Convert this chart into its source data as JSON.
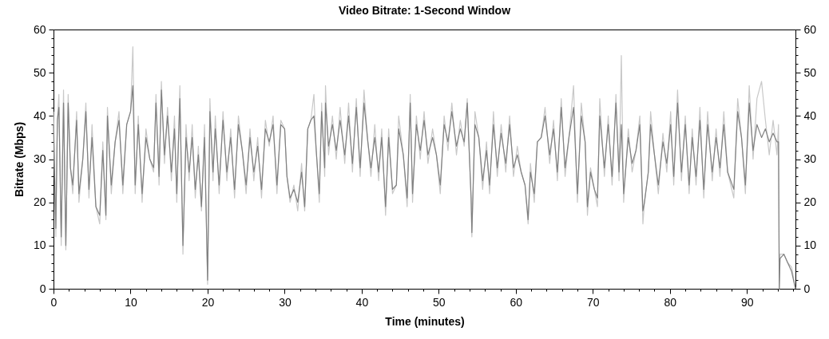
{
  "chart_data": {
    "type": "line",
    "title": "Video Bitrate: 1-Second Window",
    "xlabel": "Time (minutes)",
    "ylabel": "Bitrate (Mbps)",
    "xlim": [
      0,
      96.3
    ],
    "ylim": [
      0,
      60
    ],
    "y2lim": [
      0,
      60
    ],
    "xticks": [
      0,
      {
        "value": 2,
        "label": null
      },
      {
        "value": 4,
        "label": null
      },
      {
        "value": 6,
        "label": null
      },
      {
        "value": 8,
        "label": null
      },
      10,
      {
        "value": 12,
        "label": null
      },
      {
        "value": 14,
        "label": null
      },
      {
        "value": 16,
        "label": null
      },
      {
        "value": 18,
        "label": null
      },
      20,
      {
        "value": 22,
        "label": null
      },
      {
        "value": 24,
        "label": null
      },
      {
        "value": 26,
        "label": null
      },
      {
        "value": 28,
        "label": null
      },
      30,
      {
        "value": 32,
        "label": null
      },
      {
        "value": 34,
        "label": null
      },
      {
        "value": 36,
        "label": null
      },
      {
        "value": 38,
        "label": null
      },
      40,
      {
        "value": 42,
        "label": null
      },
      {
        "value": 44,
        "label": null
      },
      {
        "value": 46,
        "label": null
      },
      {
        "value": 48,
        "label": null
      },
      50,
      {
        "value": 52,
        "label": null
      },
      {
        "value": 54,
        "label": null
      },
      {
        "value": 56,
        "label": null
      },
      {
        "value": 58,
        "label": null
      },
      60,
      {
        "value": 62,
        "label": null
      },
      {
        "value": 64,
        "label": null
      },
      {
        "value": 66,
        "label": null
      },
      {
        "value": 68,
        "label": null
      },
      70,
      {
        "value": 72,
        "label": null
      },
      {
        "value": 74,
        "label": null
      },
      {
        "value": 76,
        "label": null
      },
      {
        "value": 78,
        "label": null
      },
      80,
      {
        "value": 82,
        "label": null
      },
      {
        "value": 84,
        "label": null
      },
      {
        "value": 86,
        "label": null
      },
      {
        "value": 88,
        "label": null
      },
      90,
      {
        "value": 92,
        "label": null
      },
      {
        "value": 94,
        "label": null
      },
      {
        "value": 96,
        "label": null
      }
    ],
    "yticks": [
      0,
      {
        "value": 2,
        "label": null
      },
      {
        "value": 4,
        "label": null
      },
      {
        "value": 6,
        "label": null
      },
      {
        "value": 8,
        "label": null
      },
      10,
      {
        "value": 12,
        "label": null
      },
      {
        "value": 14,
        "label": null
      },
      {
        "value": 16,
        "label": null
      },
      {
        "value": 18,
        "label": null
      },
      20,
      {
        "value": 22,
        "label": null
      },
      {
        "value": 24,
        "label": null
      },
      {
        "value": 26,
        "label": null
      },
      {
        "value": 28,
        "label": null
      },
      30,
      {
        "value": 32,
        "label": null
      },
      {
        "value": 34,
        "label": null
      },
      {
        "value": 36,
        "label": null
      },
      {
        "value": 38,
        "label": null
      },
      40,
      {
        "value": 42,
        "label": null
      },
      {
        "value": 44,
        "label": null
      },
      {
        "value": 46,
        "label": null
      },
      {
        "value": 48,
        "label": null
      },
      50,
      {
        "value": 52,
        "label": null
      },
      {
        "value": 54,
        "label": null
      },
      {
        "value": 56,
        "label": null
      },
      {
        "value": 58,
        "label": null
      },
      60
    ],
    "y2ticks": [
      0,
      {
        "value": 2,
        "label": null
      },
      {
        "value": 4,
        "label": null
      },
      {
        "value": 6,
        "label": null
      },
      {
        "value": 8,
        "label": null
      },
      10,
      {
        "value": 12,
        "label": null
      },
      {
        "value": 14,
        "label": null
      },
      {
        "value": 16,
        "label": null
      },
      {
        "value": 18,
        "label": null
      },
      20,
      {
        "value": 22,
        "label": null
      },
      {
        "value": 24,
        "label": null
      },
      {
        "value": 26,
        "label": null
      },
      {
        "value": 28,
        "label": null
      },
      30,
      {
        "value": 32,
        "label": null
      },
      {
        "value": 34,
        "label": null
      },
      {
        "value": 36,
        "label": null
      },
      {
        "value": 38,
        "label": null
      },
      40,
      {
        "value": 42,
        "label": null
      },
      {
        "value": 44,
        "label": null
      },
      {
        "value": 46,
        "label": null
      },
      {
        "value": 48,
        "label": null
      },
      50,
      {
        "value": 52,
        "label": null
      },
      {
        "value": 54,
        "label": null
      },
      {
        "value": 56,
        "label": null
      },
      {
        "value": 58,
        "label": null
      },
      60
    ],
    "x": [
      0,
      0.3,
      0.5,
      0.7,
      1,
      1.3,
      1.6,
      1.9,
      2.2,
      2.5,
      3,
      3.3,
      3.8,
      4.2,
      4.6,
      5,
      5.5,
      6,
      6.4,
      6.8,
      7,
      7.5,
      8,
      8.5,
      9,
      9.5,
      10,
      10.3,
      10.6,
      11,
      11.5,
      12,
      12.5,
      13,
      13.3,
      13.7,
      14,
      14.4,
      14.8,
      15.3,
      15.7,
      16,
      16.4,
      16.8,
      17.2,
      17.6,
      18,
      18.4,
      18.8,
      19.2,
      19.6,
      20,
      20.3,
      20.7,
      21,
      21.5,
      22,
      22.5,
      23,
      23.5,
      24,
      24.5,
      25,
      25.5,
      26,
      26.5,
      27,
      27.5,
      28,
      28.5,
      29,
      29.5,
      30,
      30.3,
      30.7,
      31.2,
      31.7,
      32.2,
      32.6,
      33,
      33.4,
      33.8,
      34.1,
      34.5,
      34.8,
      35.2,
      35.3,
      35.7,
      36.2,
      36.7,
      37.2,
      37.8,
      38.3,
      38.8,
      39.3,
      39.8,
      40.3,
      40.8,
      41.2,
      41.7,
      42.2,
      42.6,
      43.1,
      43.5,
      44,
      44.5,
      44.8,
      45.4,
      45.9,
      46.3,
      46.6,
      47.1,
      47.6,
      48.1,
      48.6,
      49.2,
      49.7,
      50.2,
      50.7,
      51.2,
      51.7,
      52.3,
      52.8,
      53.3,
      53.7,
      54.2,
      54.3,
      54.7,
      55.2,
      55.7,
      56.2,
      56.6,
      57.1,
      57.6,
      58.1,
      58.7,
      59.2,
      59.7,
      60.2,
      60.7,
      61.2,
      61.6,
      61.9,
      62.4,
      62.8,
      63.3,
      63.8,
      64.4,
      64.9,
      65.4,
      65.9,
      66.4,
      66.9,
      67.5,
      68,
      68.5,
      69,
      69.3,
      69.7,
      70.2,
      70.6,
      70.9,
      71.5,
      72,
      72.5,
      73,
      73.4,
      73.7,
      74,
      74.6,
      75.1,
      75.6,
      76.1,
      76.5,
      76.7,
      77.2,
      77.5,
      78,
      78.5,
      79.1,
      79.6,
      80.1,
      80.5,
      81,
      81.5,
      82,
      82.5,
      82.9,
      83.4,
      83.9,
      84.4,
      84.9,
      85.5,
      86,
      86.5,
      87,
      87.5,
      88.3,
      88.8,
      89.3,
      89.8,
      90.3,
      90.8,
      91.3,
      91.9,
      92.4,
      92.9,
      93.4,
      93.9,
      94.1,
      94.2,
      94.3,
      94.8,
      95.3,
      95.8,
      96.3
    ],
    "series": [
      {
        "color": "#c8c8c8",
        "values": [
          41,
          12,
          39,
          45,
          10,
          46,
          9,
          45,
          28,
          22,
          41,
          20,
          30,
          43,
          21,
          38,
          19,
          15,
          34,
          16,
          42,
          22,
          34,
          41,
          22,
          38,
          41,
          56,
          22,
          40,
          20,
          37,
          30,
          27,
          45,
          24,
          48,
          29,
          42,
          25,
          40,
          20,
          47,
          8,
          38,
          25,
          38,
          21,
          33,
          18,
          38,
          1,
          44,
          25,
          40,
          22,
          41,
          25,
          37,
          21,
          40,
          32,
          22,
          37,
          25,
          35,
          21,
          39,
          33,
          40,
          22,
          39,
          37,
          26,
          20,
          24,
          18,
          29,
          18,
          37,
          39,
          45,
          32,
          20,
          43,
          26,
          47,
          31,
          40,
          30,
          42,
          29,
          43,
          27,
          44,
          26,
          46,
          34,
          26,
          38,
          25,
          37,
          17,
          37,
          22,
          24,
          40,
          31,
          19,
          45,
          20,
          40,
          30,
          41,
          29,
          37,
          31,
          22,
          40,
          32,
          43,
          31,
          39,
          33,
          44,
          21,
          12,
          41,
          35,
          23,
          34,
          22,
          41,
          26,
          38,
          27,
          40,
          26,
          33,
          27,
          24,
          15,
          29,
          20,
          34,
          35,
          42,
          29,
          39,
          25,
          44,
          26,
          35,
          47,
          20,
          43,
          34,
          17,
          28,
          23,
          19,
          44,
          26,
          40,
          24,
          45,
          25,
          54,
          20,
          37,
          27,
          32,
          40,
          15,
          20,
          27,
          41,
          31,
          22,
          36,
          27,
          41,
          24,
          46,
          25,
          40,
          22,
          37,
          24,
          42,
          21,
          41,
          25,
          37,
          26,
          41,
          27,
          21,
          44,
          35,
          22,
          47,
          30,
          44,
          48,
          39,
          31,
          39,
          31,
          38,
          0,
          8,
          8,
          6,
          5,
          0
        ]
      },
      {
        "color": "#808080",
        "values": [
          38,
          14,
          39,
          42,
          12,
          43,
          10,
          43,
          28,
          24,
          39,
          22,
          30,
          41,
          23,
          35,
          19,
          17,
          32,
          17,
          40,
          24,
          34,
          39,
          24,
          38,
          41,
          47,
          24,
          38,
          22,
          35,
          30,
          28,
          43,
          26,
          46,
          31,
          40,
          27,
          37,
          22,
          44,
          10,
          35,
          27,
          35,
          23,
          31,
          19,
          35,
          2,
          41,
          27,
          37,
          24,
          39,
          27,
          35,
          23,
          38,
          32,
          24,
          35,
          27,
          33,
          23,
          37,
          34,
          38,
          24,
          38,
          37,
          26,
          21,
          23,
          20,
          27,
          19,
          37,
          39,
          40,
          32,
          22,
          41,
          28,
          43,
          33,
          38,
          32,
          39,
          31,
          40,
          29,
          42,
          28,
          43,
          34,
          28,
          35,
          27,
          35,
          19,
          35,
          23,
          24,
          37,
          31,
          21,
          43,
          22,
          38,
          32,
          39,
          31,
          35,
          31,
          24,
          38,
          34,
          41,
          33,
          37,
          34,
          43,
          21,
          13,
          38,
          35,
          25,
          32,
          24,
          38,
          28,
          36,
          29,
          38,
          28,
          31,
          27,
          24,
          16,
          27,
          22,
          34,
          35,
          40,
          31,
          37,
          27,
          42,
          28,
          35,
          42,
          22,
          40,
          34,
          19,
          27,
          23,
          21,
          40,
          28,
          38,
          26,
          43,
          27,
          38,
          22,
          35,
          29,
          32,
          38,
          18,
          20,
          27,
          38,
          31,
          24,
          34,
          29,
          38,
          26,
          43,
          27,
          38,
          24,
          35,
          26,
          39,
          23,
          38,
          27,
          35,
          28,
          38,
          27,
          23,
          41,
          35,
          24,
          43,
          32,
          38,
          35,
          37,
          34,
          36,
          34,
          34,
          0,
          7,
          8,
          6,
          4,
          0
        ]
      }
    ]
  }
}
